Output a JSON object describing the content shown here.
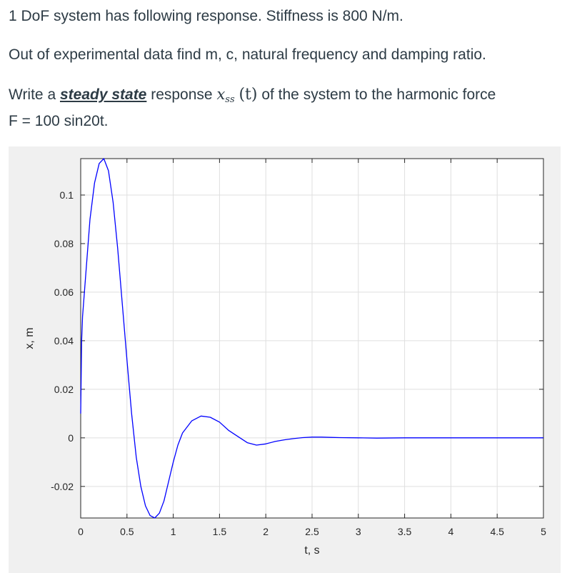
{
  "question": {
    "line1": "1 DoF system has following response. Stiffness is 800 N/m.",
    "line2": "Out of experimental data find m, c, natural frequency and damping ratio.",
    "line3_pre": "Write a ",
    "line3_emph": "steady state",
    "line3_mid": " response ",
    "line3_var": "x",
    "line3_sub": "ss",
    "line3_arg": "(t)",
    "line3_post": " of the system to the harmonic force",
    "line4": "F = 100 sin20t."
  },
  "chart_data": {
    "type": "line",
    "xlabel": "t, s",
    "ylabel": "x, m",
    "xlim": [
      0,
      5
    ],
    "ylim": [
      -0.033,
      0.115
    ],
    "xticks": [
      0,
      0.5,
      1,
      1.5,
      2,
      2.5,
      3,
      3.5,
      4,
      4.5,
      5
    ],
    "xtick_labels": [
      "0",
      "0.5",
      "1",
      "1.5",
      "2",
      "2.5",
      "3",
      "3.5",
      "4",
      "4.5",
      "5"
    ],
    "yticks": [
      -0.02,
      0,
      0.02,
      0.04,
      0.06,
      0.08,
      0.1
    ],
    "ytick_labels": [
      "-0.02",
      "0",
      "0.02",
      "0.04",
      "0.06",
      "0.08",
      "0.1"
    ],
    "grid": true,
    "line_color": "#0000ff",
    "series": [
      {
        "x": [
          0,
          0.01,
          0.02,
          0.05,
          0.1,
          0.15,
          0.2,
          0.25,
          0.3,
          0.35,
          0.4,
          0.45,
          0.5,
          0.55,
          0.6,
          0.65,
          0.7,
          0.75,
          0.8,
          0.85,
          0.9,
          0.95,
          1.0,
          1.05,
          1.1,
          1.2,
          1.3,
          1.4,
          1.5,
          1.6,
          1.7,
          1.8,
          1.9,
          2.0,
          2.1,
          2.2,
          2.3,
          2.4,
          2.5,
          2.6,
          2.7,
          2.8,
          3.0,
          3.2,
          3.5,
          4.0,
          4.5,
          5.0
        ],
        "y": [
          0.01,
          0.04,
          0.05,
          0.065,
          0.09,
          0.105,
          0.113,
          0.115,
          0.11,
          0.097,
          0.078,
          0.055,
          0.032,
          0.01,
          -0.008,
          -0.02,
          -0.028,
          -0.032,
          -0.033,
          -0.031,
          -0.026,
          -0.018,
          -0.01,
          -0.003,
          0.002,
          0.007,
          0.009,
          0.0085,
          0.0065,
          0.003,
          0.0005,
          -0.002,
          -0.003,
          -0.0025,
          -0.0015,
          -0.0008,
          -0.0003,
          0.0001,
          0.0003,
          0.0003,
          0.0002,
          0.0001,
          0.0,
          -0.0001,
          0.0,
          0.0,
          0.0,
          0.0
        ]
      }
    ]
  }
}
